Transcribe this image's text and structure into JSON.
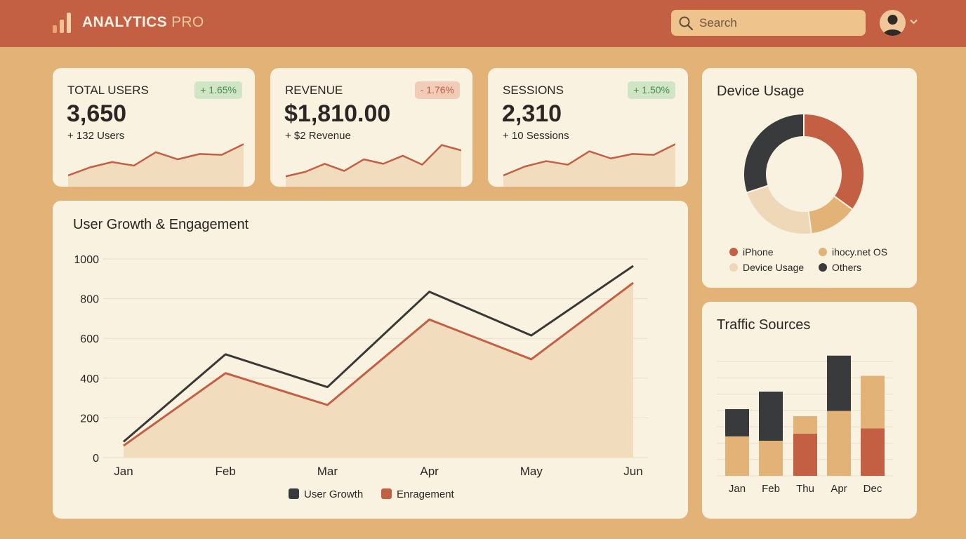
{
  "header": {
    "brand_primary": "ANALYTICS",
    "brand_secondary": "PRO",
    "search_placeholder": "Search"
  },
  "kpis": [
    {
      "label": "TOTAL USERS",
      "value": "3,650",
      "sub": "+ 132 Users",
      "change": "+ 1.65%",
      "trend": "up",
      "sparkline": [
        22,
        40,
        52,
        44,
        74,
        58,
        70,
        68,
        92
      ]
    },
    {
      "label": "REVENUE",
      "value": "$1,810.00",
      "sub": "+ $2 Revenue",
      "change": "- 1.76%",
      "trend": "down",
      "sparkline": [
        20,
        30,
        48,
        32,
        58,
        48,
        66,
        46,
        90,
        78
      ]
    },
    {
      "label": "SESSIONS",
      "value": "2,310",
      "sub": "+ 10 Sessions",
      "change": "+ 1.50%",
      "trend": "up",
      "sparkline": [
        22,
        42,
        54,
        46,
        76,
        60,
        70,
        68,
        92
      ]
    }
  ],
  "main_chart": {
    "title": "User Growth & Engagement"
  },
  "chart_data": [
    {
      "type": "line",
      "title": "User Growth & Engagement",
      "x": [
        "Jan",
        "Feb",
        "Mar",
        "Apr",
        "May",
        "Jun"
      ],
      "ylim": [
        0,
        1000
      ],
      "yticks": [
        0,
        200,
        400,
        600,
        800,
        1000
      ],
      "grid": true,
      "legend": "bottom",
      "series": [
        {
          "name": "User Growth",
          "values": [
            80,
            520,
            355,
            835,
            615,
            965
          ],
          "color": "#3a3835"
        },
        {
          "name": "Enragement",
          "values": [
            60,
            425,
            265,
            695,
            495,
            880
          ],
          "color": "#c35f42",
          "fill": "#f1dcbe"
        }
      ]
    },
    {
      "type": "pie",
      "title": "Device Usage",
      "slices": [
        {
          "name": "iPhone",
          "value": 35,
          "color": "#c35f42"
        },
        {
          "name": "ihocy.net OS",
          "value": 13,
          "color": "#e2b277"
        },
        {
          "name": "Device Usage",
          "value": 22,
          "color": "#efd8b8"
        },
        {
          "name": "Others",
          "value": 30,
          "color": "#393a3b"
        }
      ],
      "legend": "bottom"
    },
    {
      "type": "bar",
      "title": "Traffic Sources",
      "categories": [
        "Jan",
        "Feb",
        "Thu",
        "Apr",
        "Dec"
      ],
      "stacked": true,
      "ylim": [
        0,
        140
      ],
      "grid": true,
      "bars": [
        {
          "segments": [
            {
              "value": 45,
              "color": "#e2b277"
            },
            {
              "value": 31,
              "color": "#393a3b"
            }
          ]
        },
        {
          "segments": [
            {
              "value": 40,
              "color": "#e2b277"
            },
            {
              "value": 56,
              "color": "#393a3b"
            }
          ]
        },
        {
          "segments": [
            {
              "value": 48,
              "color": "#c35f42"
            },
            {
              "value": 20,
              "color": "#e2b277"
            }
          ]
        },
        {
          "segments": [
            {
              "value": 74,
              "color": "#e2b277"
            },
            {
              "value": 63,
              "color": "#393a3b"
            }
          ]
        },
        {
          "segments": [
            {
              "value": 54,
              "color": "#c35f42"
            },
            {
              "value": 60,
              "color": "#e2b277"
            }
          ]
        }
      ]
    }
  ],
  "colors": {
    "header_bg": "#c35f42",
    "page_bg": "#e2b277",
    "card_bg": "#f9f2e1",
    "accent": "#c35f42",
    "dark": "#393a3b",
    "positive": "#4b8a52",
    "negative": "#bd5a44"
  },
  "icons": {
    "logo": "bar-chart-icon",
    "search": "search-icon",
    "avatar": "user-avatar-icon",
    "caret": "chevron-down-icon"
  }
}
